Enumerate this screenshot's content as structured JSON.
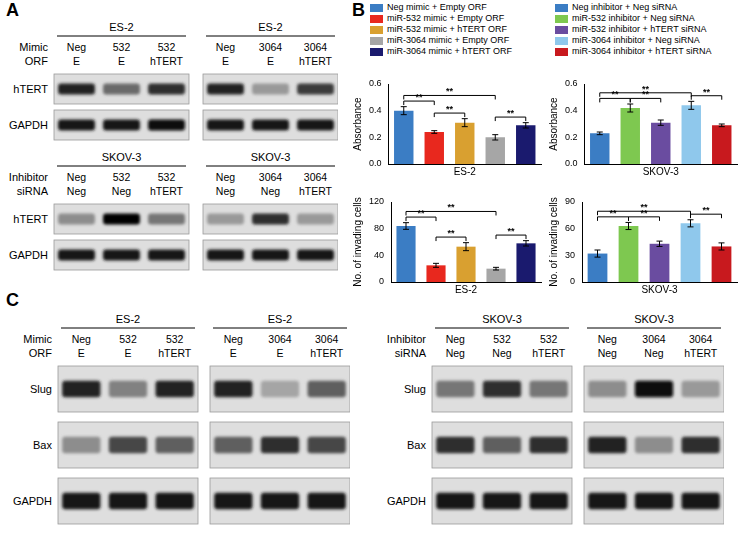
{
  "panels": {
    "A": {
      "label": "A",
      "groups": [
        {
          "cell_rows": [
            "Mimic",
            "ORF"
          ],
          "bands": [
            "hTERT",
            "GAPDH"
          ],
          "blots": [
            {
              "cell": "ES-2",
              "lanes": [
                [
                  "Neg",
                  "532",
                  "532"
                ],
                [
                  "E",
                  "E",
                  "hTERT"
                ]
              ],
              "intensity": [
                [
                  0.85,
                  0.55,
                  0.8
                ],
                [
                  0.9,
                  0.9,
                  0.95
                ]
              ]
            },
            {
              "cell": "ES-2",
              "lanes": [
                [
                  "Neg",
                  "3064",
                  "3064"
                ],
                [
                  "E",
                  "E",
                  "hTERT"
                ]
              ],
              "intensity": [
                [
                  0.85,
                  0.35,
                  0.75
                ],
                [
                  0.9,
                  0.9,
                  0.9
                ]
              ]
            }
          ]
        },
        {
          "cell_rows": [
            "Inhibitor",
            "siRNA"
          ],
          "bands": [
            "hTERT",
            "GAPDH"
          ],
          "blots": [
            {
              "cell": "SKOV-3",
              "lanes": [
                [
                  "Neg",
                  "532",
                  "532"
                ],
                [
                  "Neg",
                  "Neg",
                  "hTERT"
                ]
              ],
              "intensity": [
                [
                  0.4,
                  1.0,
                  0.5
                ],
                [
                  0.9,
                  0.9,
                  0.9
                ]
              ]
            },
            {
              "cell": "SKOV-3",
              "lanes": [
                [
                  "Neg",
                  "3064",
                  "3064"
                ],
                [
                  "Neg",
                  "Neg",
                  "hTERT"
                ]
              ],
              "intensity": [
                [
                  0.35,
                  0.8,
                  0.35
                ],
                [
                  0.9,
                  0.9,
                  0.9
                ]
              ]
            }
          ]
        }
      ]
    },
    "B": {
      "label": "B",
      "legend": [
        [
          {
            "name": "Neg mimic + Empty ORF",
            "color": "#3b7dc4"
          },
          {
            "name": "miR-532 mimic + Empty ORF",
            "color": "#e8281e"
          },
          {
            "name": "miR-532 mimic + hTERT ORF",
            "color": "#d9a030"
          },
          {
            "name": "miR-3064 mimic + Empty ORF",
            "color": "#a6a6a6"
          },
          {
            "name": "miR-3064 mimic + hTERT ORF",
            "color": "#1a1a6e"
          }
        ],
        [
          {
            "name": "Neg inhibitor + Neg siRNA",
            "color": "#3b7dc4"
          },
          {
            "name": "miR-532 inhibitor + Neg siRNA",
            "color": "#7ec850"
          },
          {
            "name": "miR-532 inhibitor + hTERT siRNA",
            "color": "#6a4ca0"
          },
          {
            "name": "miR-3064 inhibitor + Neg siRNA",
            "color": "#8fc8ec"
          },
          {
            "name": "miR-3064 inhibitor + hTERT siRNA",
            "color": "#c8191e"
          }
        ]
      ]
    },
    "C": {
      "label": "C",
      "groups": [
        {
          "cell_rows": [
            "Mimic",
            "ORF"
          ],
          "bands": [
            "Slug",
            "Bax",
            "GAPDH"
          ],
          "blots": [
            {
              "cell": "ES-2",
              "lanes": [
                [
                  "Neg",
                  "532",
                  "532"
                ],
                [
                  "E",
                  "E",
                  "hTERT"
                ]
              ],
              "intensity": [
                [
                  0.85,
                  0.45,
                  0.85
                ],
                [
                  0.4,
                  0.7,
                  0.6
                ],
                [
                  0.9,
                  0.9,
                  0.9
                ]
              ]
            },
            {
              "cell": "ES-2",
              "lanes": [
                [
                  "Neg",
                  "3064",
                  "3064"
                ],
                [
                  "E",
                  "E",
                  "hTERT"
                ]
              ],
              "intensity": [
                [
                  0.85,
                  0.3,
                  0.6
                ],
                [
                  0.6,
                  0.8,
                  0.7
                ],
                [
                  0.9,
                  0.9,
                  0.9
                ]
              ]
            }
          ]
        },
        {
          "cell_rows": [
            "Inhibitor",
            "siRNA"
          ],
          "bands": [
            "Slug",
            "Bax",
            "GAPDH"
          ],
          "blots": [
            {
              "cell": "SKOV-3",
              "lanes": [
                [
                  "Neg",
                  "532",
                  "532"
                ],
                [
                  "Neg",
                  "Neg",
                  "hTERT"
                ]
              ],
              "intensity": [
                [
                  0.5,
                  0.8,
                  0.5
                ],
                [
                  0.8,
                  0.6,
                  0.8
                ],
                [
                  0.9,
                  0.9,
                  0.9
                ]
              ]
            },
            {
              "cell": "SKOV-3",
              "lanes": [
                [
                  "Neg",
                  "3064",
                  "3064"
                ],
                [
                  "Neg",
                  "Neg",
                  "hTERT"
                ]
              ],
              "intensity": [
                [
                  0.4,
                  0.95,
                  0.35
                ],
                [
                  0.85,
                  0.4,
                  0.8
                ],
                [
                  0.9,
                  0.9,
                  0.9
                ]
              ]
            }
          ]
        }
      ]
    }
  },
  "chart_data": [
    {
      "type": "bar",
      "x_label": "ES-2",
      "y_label": "Absorbance",
      "categories": [
        null,
        null,
        null,
        null,
        null
      ],
      "values": [
        0.4,
        0.24,
        0.31,
        0.2,
        0.29
      ],
      "errors": [
        0.03,
        0.01,
        0.03,
        0.02,
        0.02
      ],
      "colors": [
        "#3b7dc4",
        "#e8281e",
        "#d9a030",
        "#a6a6a6",
        "#1a1a6e"
      ],
      "ylim": [
        0,
        0.6
      ],
      "yticks": [
        {
          "value": 0,
          "label": "0.0"
        },
        0.2,
        0.4,
        0.6
      ],
      "grid": false,
      "tick_labels": "y",
      "significance": [
        {
          "pair": [
            0,
            1
          ],
          "label": "**"
        },
        {
          "pair": [
            1,
            2
          ],
          "label": "**"
        },
        {
          "pair": [
            0,
            3
          ],
          "label": "**"
        },
        {
          "pair": [
            3,
            4
          ],
          "label": "**"
        }
      ]
    },
    {
      "type": "bar",
      "x_label": "SKOV-3",
      "y_label": "Absorbance",
      "categories": [
        null,
        null,
        null,
        null,
        null
      ],
      "values": [
        0.23,
        0.42,
        0.31,
        0.44,
        0.29
      ],
      "errors": [
        0.01,
        0.03,
        0.02,
        0.03,
        0.01
      ],
      "colors": [
        "#3b7dc4",
        "#7ec850",
        "#6a4ca0",
        "#8fc8ec",
        "#c8191e"
      ],
      "ylim": [
        0,
        0.6
      ],
      "yticks": [
        {
          "value": 0,
          "label": "0.0"
        },
        0.2,
        0.4,
        0.6
      ],
      "grid": false,
      "tick_labels": "y",
      "significance": [
        {
          "pair": [
            0,
            1
          ],
          "label": "**"
        },
        {
          "pair": [
            1,
            2
          ],
          "label": "**"
        },
        {
          "pair": [
            0,
            3
          ],
          "label": "**"
        },
        {
          "pair": [
            3,
            4
          ],
          "label": "**"
        }
      ]
    },
    {
      "type": "bar",
      "x_label": "ES-2",
      "y_label": "No. of invading cells",
      "categories": [
        null,
        null,
        null,
        null,
        null
      ],
      "values": [
        84,
        25,
        53,
        20,
        58
      ],
      "errors": [
        5,
        3,
        6,
        2,
        4
      ],
      "colors": [
        "#3b7dc4",
        "#e8281e",
        "#d9a030",
        "#a6a6a6",
        "#1a1a6e"
      ],
      "ylim": [
        0,
        120
      ],
      "yticks": [
        0,
        40,
        80,
        120
      ],
      "grid": false,
      "tick_labels": "y",
      "significance": [
        {
          "pair": [
            0,
            1
          ],
          "label": "**"
        },
        {
          "pair": [
            1,
            2
          ],
          "label": "**"
        },
        {
          "pair": [
            0,
            3
          ],
          "label": "**"
        },
        {
          "pair": [
            3,
            4
          ],
          "label": "**"
        }
      ]
    },
    {
      "type": "bar",
      "x_label": "SKOV-3",
      "y_label": "No. of invading cells",
      "categories": [
        null,
        null,
        null,
        null,
        null
      ],
      "values": [
        32,
        63,
        43,
        66,
        40
      ],
      "errors": [
        4,
        4,
        3,
        4,
        4
      ],
      "colors": [
        "#3b7dc4",
        "#7ec850",
        "#6a4ca0",
        "#8fc8ec",
        "#c8191e"
      ],
      "ylim": [
        0,
        90
      ],
      "yticks": [
        0,
        30,
        60,
        90
      ],
      "grid": false,
      "tick_labels": "y",
      "significance": [
        {
          "pair": [
            0,
            1
          ],
          "label": "**"
        },
        {
          "pair": [
            1,
            2
          ],
          "label": "**"
        },
        {
          "pair": [
            0,
            3
          ],
          "label": "**"
        },
        {
          "pair": [
            3,
            4
          ],
          "label": "**"
        }
      ]
    }
  ]
}
